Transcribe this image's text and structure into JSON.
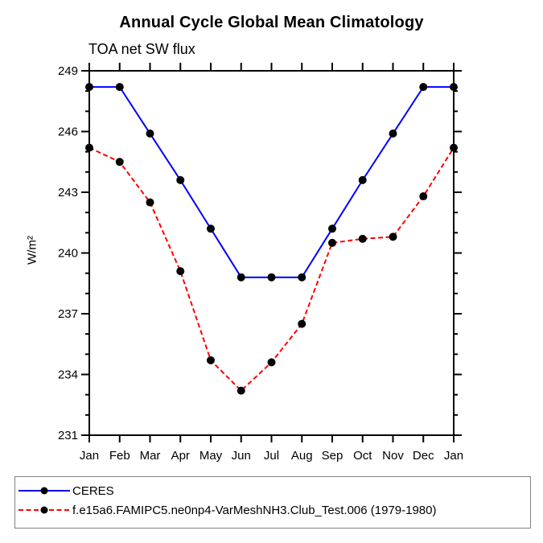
{
  "chart_data": {
    "type": "line",
    "title": "Annual Cycle Global Mean Climatology",
    "subtitle": "TOA net SW flux",
    "ylabel": "W/m²",
    "categories": [
      "Jan",
      "Feb",
      "Mar",
      "Apr",
      "May",
      "Jun",
      "Jul",
      "Aug",
      "Sep",
      "Oct",
      "Nov",
      "Dec",
      "Jan"
    ],
    "series": [
      {
        "name": "CERES",
        "color": "#0000ff",
        "dash": "solid",
        "marker": "circle",
        "marker_color": "#000000",
        "values": [
          248.2,
          248.2,
          245.9,
          243.6,
          241.2,
          238.8,
          238.8,
          238.8,
          241.2,
          243.6,
          245.9,
          248.2,
          248.2
        ]
      },
      {
        "name": "f.e15a6.FAMIPC5.ne0np4-VarMeshNH3.Club_Test.006 (1979-1980)",
        "color": "#ff0000",
        "dash": "dashed",
        "marker": "circle",
        "marker_color": "#000000",
        "values": [
          245.2,
          244.5,
          242.5,
          239.1,
          234.7,
          233.2,
          234.6,
          236.5,
          240.5,
          240.7,
          240.8,
          242.8,
          245.2
        ]
      }
    ],
    "ylim": [
      231,
      249
    ],
    "ytick_step": 3,
    "yminor_step": 1,
    "ytick_labels": [
      "231",
      "234",
      "237",
      "240",
      "243",
      "246",
      "249"
    ],
    "grid": false,
    "legend_position": "bottom-left-box",
    "axis_color": "#000000",
    "background_color": "#ffffff"
  }
}
